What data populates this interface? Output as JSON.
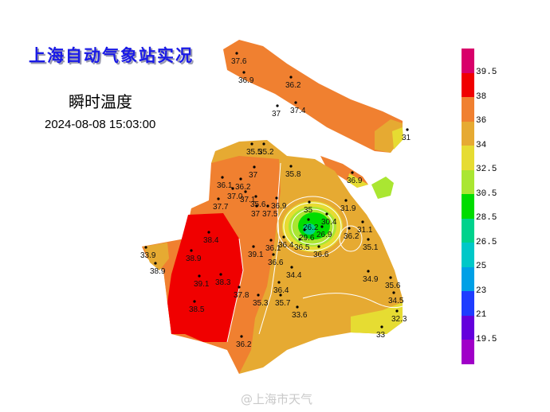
{
  "header": {
    "title": "上海自动气象站实况",
    "subtitle": "瞬时温度",
    "datetime": "2024-08-08 15:03:00"
  },
  "legend": {
    "colors": [
      "#d8006a",
      "#f00000",
      "#f08030",
      "#e6aa32",
      "#e6dc32",
      "#aae632",
      "#00dc00",
      "#00d28c",
      "#00c8c8",
      "#00a0e6",
      "#1e3cff",
      "#6400dc",
      "#a000c8"
    ],
    "labels": [
      "39.5",
      "38",
      "36",
      "34",
      "32.5",
      "30.5",
      "28.5",
      "26.5",
      "25",
      "23",
      "21",
      "19.5"
    ]
  },
  "stations": [
    "37.6",
    "36.9",
    "36.2",
    "37",
    "37.4",
    "31",
    "35.5",
    "35.2",
    "37",
    "36.1",
    "36.2",
    "37.0",
    "37.1",
    "35.6",
    "37.7",
    "37",
    "37.5",
    "36.9",
    "35.8",
    "36.9",
    "35",
    "30.4",
    "26.2",
    "26.9",
    "29.6",
    "31.9",
    "36.2",
    "31.1",
    "35.1",
    "36.4",
    "36.5",
    "36.6",
    "38.4",
    "38.9",
    "33.9",
    "38.9",
    "39.1",
    "36.1",
    "36.6",
    "34.4",
    "39.1",
    "38.3",
    "37.8",
    "36.4",
    "35.3",
    "35.7",
    "34.9",
    "35.6",
    "34.5",
    "33.6",
    "32.3",
    "33",
    "38.5",
    "36.2"
  ],
  "watermark": "@上海市天气"
}
